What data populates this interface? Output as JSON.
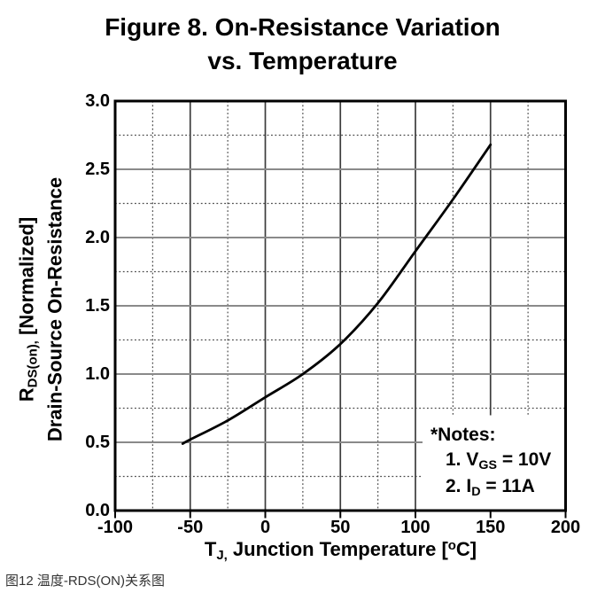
{
  "title": {
    "line1": "Figure 8. On-Resistance Variation",
    "line2": "vs. Temperature"
  },
  "y_axis": {
    "label_line1": {
      "pre": "R",
      "sub": "DS(on),",
      "post": " [Normalized]"
    },
    "label_line2": "Drain-Source On-Resistance",
    "tick_labels": [
      "3.0",
      "2.5",
      "2.0",
      "1.5",
      "1.0",
      "0.5",
      "0.0"
    ],
    "tick_values": [
      3.0,
      2.5,
      2.0,
      1.5,
      1.0,
      0.5,
      0.0
    ]
  },
  "x_axis": {
    "label": {
      "pre": "T",
      "sub": "J,",
      "mid": " Junction Temperature ",
      "open_bracket": "[",
      "sup": "o",
      "unit": "C",
      "close_bracket": "]"
    },
    "tick_labels": [
      "-100",
      "-50",
      "0",
      "50",
      "100",
      "150",
      "200"
    ],
    "tick_values": [
      -100,
      -50,
      0,
      50,
      100,
      150,
      200
    ]
  },
  "notes": {
    "heading": "*Notes:",
    "items": [
      {
        "pre": "1. V",
        "sub": "GS",
        "post": " = 10V"
      },
      {
        "pre": "2. I",
        "sub": "D",
        "post": " = 11A"
      }
    ]
  },
  "caption": "图12 温度-RDS(ON)关系图",
  "colors": {
    "background": "#ffffff",
    "text": "#000000",
    "curve": "#000000",
    "frame": "#000000",
    "grid_major_horizontal": "#8a8a8a",
    "grid_major_vertical": "#3c3c3c",
    "grid_minor_dotted": "#4a4a4a",
    "caption_text": "#333333"
  },
  "chart_data": {
    "type": "line",
    "title": "Figure 8. On-Resistance Variation vs. Temperature",
    "xlabel": "TJ, Junction Temperature [°C]",
    "ylabel": "RDS(on), [Normalized] Drain-Source On-Resistance",
    "xlim": [
      -100,
      200
    ],
    "ylim": [
      0,
      3
    ],
    "x_major_ticks": [
      -100,
      -50,
      0,
      50,
      100,
      150,
      200
    ],
    "x_minor_step": 25,
    "y_major_ticks": [
      0,
      0.5,
      1.0,
      1.5,
      2.0,
      2.5,
      3.0
    ],
    "y_minor_step": 0.25,
    "grid": {
      "major": "solid",
      "minor": "dotted"
    },
    "legend": "none",
    "series": [
      {
        "name": "RDS(on) normalized (VGS = 10V, ID = 11A)",
        "x": [
          -55,
          -50,
          -25,
          0,
          25,
          50,
          75,
          100,
          125,
          150
        ],
        "y": [
          0.49,
          0.52,
          0.66,
          0.83,
          1.0,
          1.22,
          1.52,
          1.9,
          2.28,
          2.68
        ]
      }
    ],
    "annotations": [
      "*Notes:",
      "1. VGS = 10V",
      "2. ID = 11A"
    ]
  }
}
